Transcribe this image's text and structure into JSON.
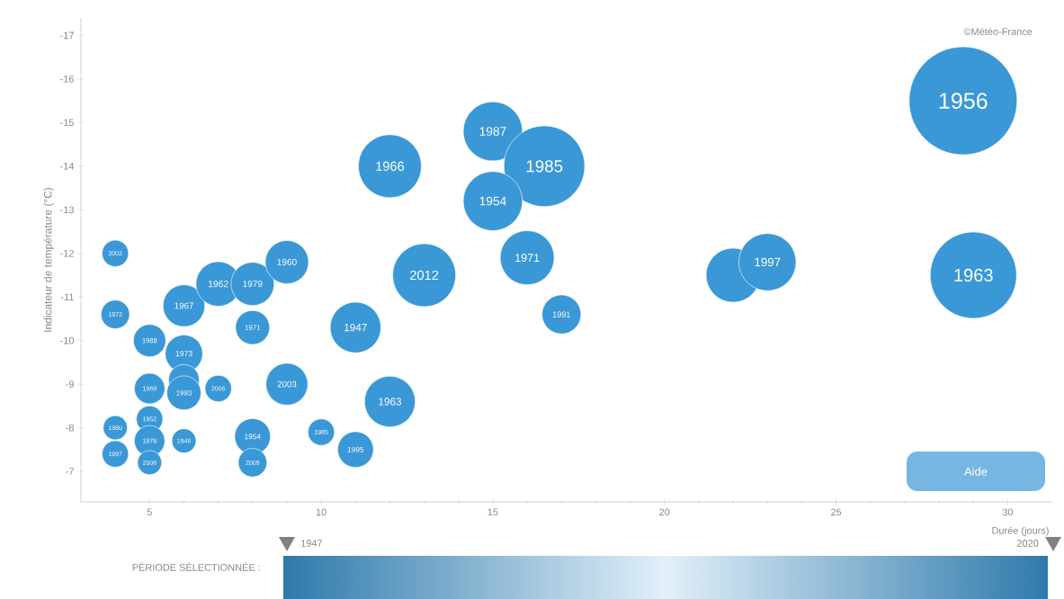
{
  "chart_data": {
    "type": "bubble",
    "xlabel": "Durée (jours)",
    "ylabel": "Indicateur de température (°C)",
    "x": [
      4,
      4,
      5,
      6,
      7,
      8,
      9,
      8,
      6,
      5,
      6,
      6,
      7,
      9,
      12,
      11,
      4,
      5,
      5,
      6,
      4,
      5,
      8,
      8,
      10,
      11,
      12,
      13,
      15,
      16.5,
      15,
      16,
      17,
      22,
      23,
      28.7,
      29
    ],
    "values": [
      -12,
      -10.6,
      -10,
      -10.8,
      -11.3,
      -11.3,
      -11.8,
      -10.3,
      -9.7,
      -8.9,
      -9.1,
      -8.8,
      -8.9,
      -9,
      -8.6,
      -10.3,
      -8,
      -8.2,
      -7.7,
      -7.7,
      -7.4,
      -7.2,
      -7.8,
      -7.2,
      -7.9,
      -7.5,
      -14,
      -11.5,
      -14.8,
      -14,
      -13.2,
      -11.9,
      -10.6,
      -11.5,
      -11.8,
      -15.5,
      -11.5
    ],
    "sizes": [
      0.06,
      0.07,
      0.09,
      0.15,
      0.17,
      0.16,
      0.16,
      0.1,
      0.12,
      0.08,
      0.08,
      0.1,
      0.06,
      0.15,
      0.22,
      0.22,
      0.05,
      0.06,
      0.08,
      0.05,
      0.06,
      0.05,
      0.11,
      0.07,
      0.06,
      0.11,
      0.34,
      0.34,
      0.3,
      0.56,
      0.3,
      0.25,
      0.13,
      0.25,
      0.28,
      1,
      0.64
    ],
    "color": "#3a98d6",
    "marker": "circle",
    "xlim": [
      3,
      31.3
    ],
    "xticks": [
      5,
      10,
      15,
      20,
      25,
      30
    ],
    "ylim": [
      -6.3,
      -17.4
    ],
    "yticks": [
      -17,
      -16,
      -15,
      -14,
      -13,
      -12,
      -11,
      -10,
      -9,
      -8,
      -7
    ],
    "annotations": [
      "©Météo-France",
      "PÉRIODE SÉLECTIONNÉE :",
      "1947",
      "2020",
      "Aide",
      {
        "text": "2002",
        "x": 4,
        "y": -12
      },
      {
        "text": "1972",
        "x": 4,
        "y": -10.6
      },
      {
        "text": "1988",
        "x": 5,
        "y": -10
      },
      {
        "text": "1967",
        "x": 6,
        "y": -10.8
      },
      {
        "text": "1962",
        "x": 7,
        "y": -11.3
      },
      {
        "text": "1979",
        "x": 8,
        "y": -11.3
      },
      {
        "text": "1960",
        "x": 9,
        "y": -11.8
      },
      {
        "text": "1971",
        "x": 8,
        "y": -10.3
      },
      {
        "text": "1973",
        "x": 6,
        "y": -9.7
      },
      {
        "text": "1969",
        "x": 5,
        "y": -8.9
      },
      {
        "text": "1993",
        "x": 6,
        "y": -8.8
      },
      {
        "text": "2006",
        "x": 7,
        "y": -8.9
      },
      {
        "text": "2003",
        "x": 9,
        "y": -9
      },
      {
        "text": "1963",
        "x": 12,
        "y": -8.6
      },
      {
        "text": "1947",
        "x": 11,
        "y": -10.3
      },
      {
        "text": "1980",
        "x": 4,
        "y": -8
      },
      {
        "text": "1952",
        "x": 5,
        "y": -8.2
      },
      {
        "text": "1976",
        "x": 5,
        "y": -7.7
      },
      {
        "text": "1948",
        "x": 6,
        "y": -7.7
      },
      {
        "text": "1997",
        "x": 4,
        "y": -7.4
      },
      {
        "text": "2008",
        "x": 5,
        "y": -7.2
      },
      {
        "text": "1954",
        "x": 8,
        "y": -7.8
      },
      {
        "text": "2009",
        "x": 8,
        "y": -7.2
      },
      {
        "text": "1985",
        "x": 10,
        "y": -7.9
      },
      {
        "text": "1995",
        "x": 11,
        "y": -7.5
      },
      {
        "text": "1966",
        "x": 12,
        "y": -14
      },
      {
        "text": "2012",
        "x": 13,
        "y": -11.5
      },
      {
        "text": "1987",
        "x": 15,
        "y": -14.8
      },
      {
        "text": "1985",
        "x": 16.5,
        "y": -14
      },
      {
        "text": "1954",
        "x": 15,
        "y": -13.2
      },
      {
        "text": "1971",
        "x": 16,
        "y": -11.9
      },
      {
        "text": "1991",
        "x": 17,
        "y": -10.6
      },
      {
        "text": "1997",
        "x": 23,
        "y": -11.8
      },
      {
        "text": "1956",
        "x": 28.7,
        "y": -15.5
      },
      {
        "text": "1963",
        "x": 29,
        "y": -11.5
      }
    ]
  }
}
